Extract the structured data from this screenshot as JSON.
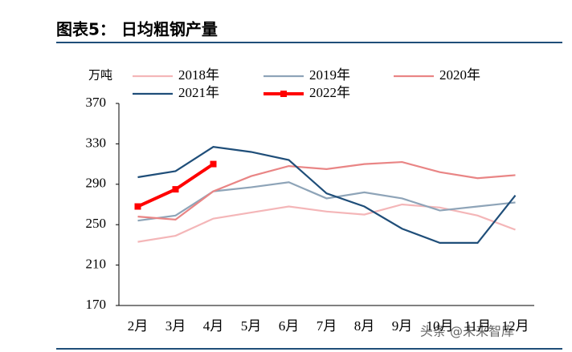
{
  "chart_data": {
    "type": "line",
    "title": "图表5： 日均粗钢产量",
    "y_label": "万吨",
    "categories": [
      "2月",
      "3月",
      "4月",
      "5月",
      "6月",
      "7月",
      "8月",
      "9月",
      "10月",
      "11月",
      "12月"
    ],
    "series": [
      {
        "name": "2018年",
        "color": "#f4b6b8",
        "values": [
          233,
          239,
          256,
          262,
          268,
          263,
          260,
          270,
          267,
          259,
          245
        ]
      },
      {
        "name": "2019年",
        "color": "#8ea4b8",
        "values": [
          254,
          259,
          283,
          287,
          292,
          276,
          282,
          276,
          264,
          268,
          272
        ]
      },
      {
        "name": "2020年",
        "color": "#e98585",
        "values": [
          258,
          255,
          283,
          298,
          308,
          305,
          310,
          312,
          302,
          296,
          299
        ]
      },
      {
        "name": "2021年",
        "color": "#1f4e79",
        "values": [
          297,
          303,
          327,
          322,
          314,
          281,
          268,
          246,
          232,
          232,
          279
        ]
      },
      {
        "name": "2022年",
        "color": "#ff0000",
        "marker": "square",
        "values": [
          268,
          285,
          310,
          null,
          null,
          null,
          null,
          null,
          null,
          null,
          null
        ]
      }
    ],
    "ylim": [
      170,
      370
    ],
    "yticks": [
      170,
      210,
      250,
      290,
      330,
      370
    ],
    "grid": false,
    "watermark": "头条 @未来智库"
  }
}
